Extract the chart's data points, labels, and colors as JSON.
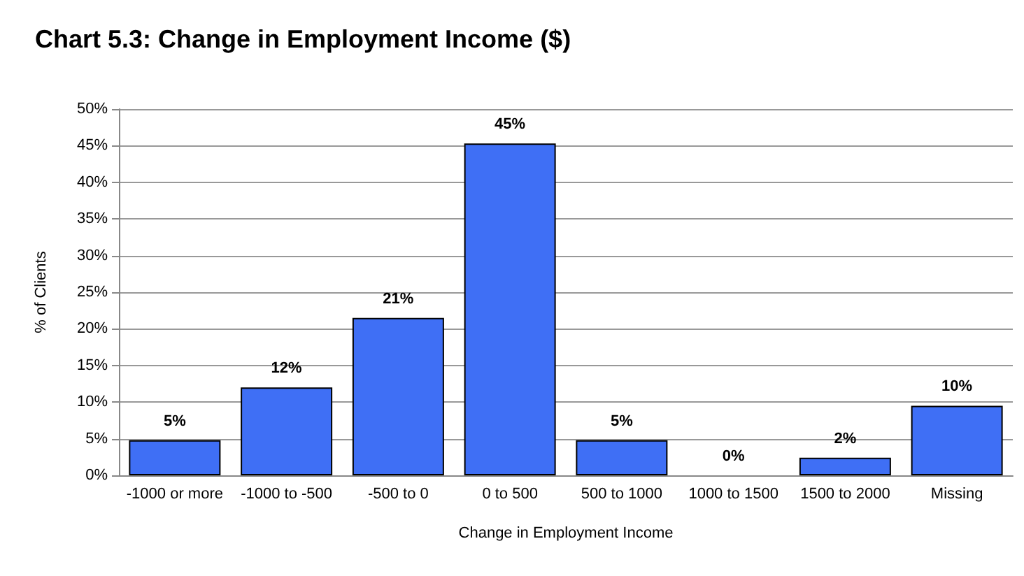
{
  "chart_data": {
    "type": "bar",
    "title": "Chart 5.3: Change in Employment Income ($)",
    "xlabel": "Change in Employment Income",
    "ylabel": "% of Clients",
    "categories": [
      "-1000 or more",
      "-1000 to -500",
      "-500 to 0",
      "0 to 500",
      "500 to 1000",
      "1000 to 1500",
      "1500 to 2000",
      "Missing"
    ],
    "values": [
      4.8,
      12,
      21.5,
      45.3,
      4.8,
      0,
      2.4,
      9.5
    ],
    "value_labels": [
      "5%",
      "12%",
      "21%",
      "45%",
      "5%",
      "0%",
      "2%",
      "10%"
    ],
    "color": "#3f6ff5",
    "ylim": [
      0,
      50
    ],
    "yticks": [
      {
        "value": 0,
        "label": "0%"
      },
      {
        "value": 5,
        "label": "5%"
      },
      {
        "value": 10,
        "label": "10%"
      },
      {
        "value": 15,
        "label": "15%"
      },
      {
        "value": 20,
        "label": "20%"
      },
      {
        "value": 25,
        "label": "25%"
      },
      {
        "value": 30,
        "label": "30%"
      },
      {
        "value": 35,
        "label": "35%"
      },
      {
        "value": 40,
        "label": "40%"
      },
      {
        "value": 45,
        "label": "45%"
      },
      {
        "value": 50,
        "label": "50%"
      }
    ],
    "grid": true
  }
}
